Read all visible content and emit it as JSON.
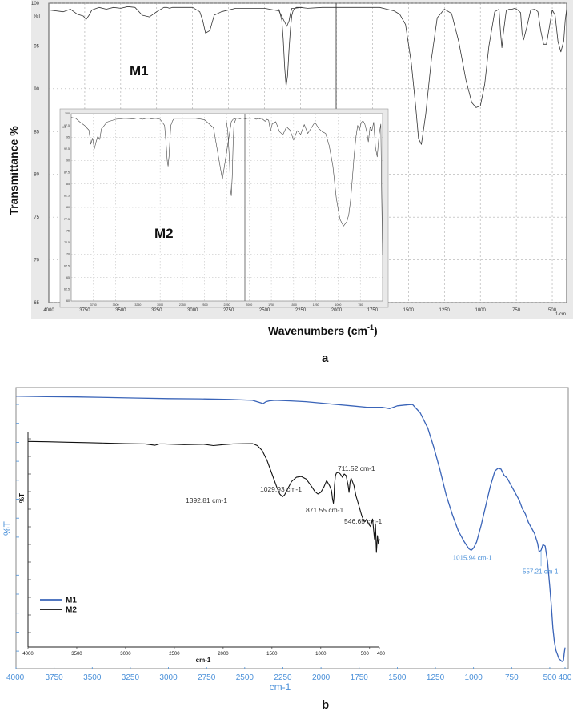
{
  "panel_a": {
    "letter": "a",
    "ylabel": "Transmittance %",
    "xlabel": "Wavenumbers (cm",
    "xlabel_sup": "-1",
    "xlabel_end": ")",
    "unit_small": "%T",
    "unit_xaxis": "1/cm"
  },
  "panel_b": {
    "letter": "b",
    "ylabel": "%T",
    "xlabel": "cm-1",
    "inset_ylabel": "%T",
    "inset_xlabel": "cm-1"
  },
  "chart_data": [
    {
      "id": "a_main",
      "type": "line",
      "xlim": [
        4000,
        400
      ],
      "ylim": [
        65,
        100
      ],
      "x_ticks": [
        4000,
        3750,
        3500,
        3250,
        3000,
        2750,
        2500,
        2250,
        2000,
        1750,
        1500,
        1250,
        1000,
        750,
        500
      ],
      "x_tick_labels": [
        "4000",
        "3750",
        "3500",
        "3250",
        "3000",
        "2750",
        "2500",
        "2250",
        "2000",
        "1750",
        "1500",
        "1250",
        "1000",
        "750",
        "500"
      ],
      "y_ticks": [
        65,
        70,
        75,
        80,
        85,
        90,
        95,
        100
      ],
      "y_tick_labels": [
        "65",
        "70",
        "75",
        "80",
        "85",
        "90",
        "95",
        "100"
      ],
      "grid": true,
      "annotation": "M1",
      "series": [
        {
          "color": "#333333",
          "x": [
            4000,
            3900,
            3850,
            3800,
            3760,
            3740,
            3720,
            3700,
            3650,
            3600,
            3550,
            3500,
            3450,
            3400,
            3350,
            3300,
            3250,
            3200,
            3180,
            3160,
            3140,
            3120,
            3100,
            3000,
            2950,
            2930,
            2910,
            2880,
            2850,
            2800,
            2700,
            2500,
            2400,
            2360,
            2345,
            2330,
            2320,
            2310,
            2290,
            2250,
            2200,
            2100,
            2000,
            1900,
            1800,
            1700,
            1650,
            1600,
            1560,
            1520,
            1480,
            1450,
            1430,
            1410,
            1380,
            1340,
            1300,
            1250,
            1200,
            1150,
            1100,
            1060,
            1030,
            1000,
            970,
            940,
            900,
            870,
            860,
            850,
            840,
            820,
            800,
            780,
            760,
            740,
            720,
            710,
            700,
            680,
            650,
            620,
            600,
            580,
            560,
            540,
            520,
            500,
            480,
            460,
            440,
            420,
            410,
            400
          ],
          "y": [
            99.2,
            99.0,
            99.3,
            98.7,
            98.5,
            98.1,
            98.6,
            99.2,
            99.5,
            99.3,
            99.5,
            99.4,
            99.6,
            99.5,
            98.6,
            98.4,
            99.0,
            99.5,
            99.5,
            99.4,
            99.5,
            99.5,
            99.5,
            99.5,
            99.0,
            98.0,
            96.5,
            96.8,
            98.6,
            99.0,
            99.4,
            99.4,
            99.1,
            97.8,
            97.3,
            97.9,
            98.8,
            99.4,
            99.4,
            99.5,
            99.4,
            99.5,
            99.5,
            99.5,
            99.5,
            99.5,
            99.3,
            99.1,
            98.7,
            97.5,
            93.0,
            88.0,
            84.2,
            83.5,
            87.0,
            93.5,
            98.3,
            99.3,
            98.8,
            95.5,
            91.0,
            88.4,
            87.8,
            88.0,
            90.5,
            95.0,
            99.0,
            99.3,
            96.7,
            94.8,
            96.5,
            99.1,
            99.3,
            99.3,
            99.4,
            99.2,
            98.9,
            96.5,
            95.7,
            97.0,
            99.2,
            99.3,
            99.0,
            96.8,
            95.2,
            95.2,
            97.2,
            99.2,
            98.6,
            95.5,
            94.3,
            95.6,
            98.0,
            99.3
          ]
        },
        {
          "color": "#333333",
          "x": [
            2400,
            2380,
            2370,
            2360,
            2350,
            2340,
            2330,
            2320,
            2310,
            2300,
            2280,
            2260,
            2240
          ],
          "y": [
            99.3,
            98.0,
            95.8,
            92.5,
            90.3,
            91.5,
            94.5,
            97.0,
            98.6,
            99.2,
            99.5,
            99.5,
            99.5
          ]
        }
      ]
    },
    {
      "id": "a_inset",
      "type": "line",
      "xlim": [
        4000,
        500
      ],
      "ylim": [
        60,
        100
      ],
      "x_ticks": [
        3750,
        3500,
        3250,
        3000,
        2750,
        2500,
        2250,
        2000,
        1750,
        1500,
        1250,
        1000,
        750
      ],
      "x_tick_labels": [
        "3750",
        "3500",
        "3250",
        "3000",
        "2750",
        "2500",
        "2250",
        "2000",
        "1750",
        "1500",
        "1250",
        "1000",
        "750"
      ],
      "y_ticks": [
        60,
        62.5,
        65,
        67.5,
        70,
        72.5,
        75,
        77.5,
        80,
        82.5,
        85,
        87.5,
        90,
        92.5,
        95,
        97.5,
        100
      ],
      "y_tick_labels": [
        "60",
        "62.5",
        "65",
        "67.5",
        "70",
        "72.5",
        "75",
        "77.5",
        "80",
        "82.5",
        "85",
        "87.5",
        "90",
        "92.5",
        "95",
        "97.5",
        "100"
      ],
      "grid": true,
      "annotation": "M2",
      "series": [
        {
          "color": "#444444",
          "x": [
            4000,
            3950,
            3900,
            3850,
            3800,
            3780,
            3760,
            3740,
            3720,
            3700,
            3680,
            3660,
            3640,
            3600,
            3500,
            3400,
            3300,
            3250,
            3200,
            3180,
            3160,
            3140,
            3120,
            3100,
            3050,
            3000,
            2950,
            2930,
            2920,
            2910,
            2900,
            2890,
            2880,
            2860,
            2840,
            2820,
            2800,
            2700,
            2600,
            2500,
            2400,
            2300,
            2200,
            2180,
            2160,
            2140,
            2120,
            2100,
            2080,
            2060,
            2040,
            2020,
            2000,
            1980,
            1960,
            1940,
            1920,
            1900,
            1880,
            1860,
            1840,
            1820,
            1800,
            1780,
            1760,
            1740,
            1700,
            1660,
            1620,
            1580,
            1540,
            1500,
            1460,
            1420,
            1380,
            1340,
            1300,
            1260,
            1220,
            1180,
            1140,
            1100,
            1060,
            1020,
            980,
            940,
            900,
            880,
            860,
            840,
            820,
            800,
            780,
            760,
            740,
            720,
            700,
            680,
            660,
            640,
            620,
            600,
            580,
            560,
            540,
            520,
            510,
            500
          ],
          "y": [
            99.2,
            99.0,
            98.2,
            97.5,
            96.5,
            93.5,
            94.8,
            92.5,
            94.0,
            95.2,
            94.5,
            96.8,
            97.2,
            98.2,
            98.8,
            99.0,
            98.9,
            99.1,
            98.8,
            98.9,
            99.0,
            99.0,
            99.0,
            98.9,
            99.0,
            98.8,
            97.5,
            93.0,
            90.0,
            88.8,
            91.0,
            94.5,
            97.5,
            98.5,
            99.0,
            99.0,
            99.0,
            99.0,
            99.0,
            98.7,
            97.0,
            86.0,
            98.3,
            98.8,
            98.9,
            99.0,
            99.0,
            98.9,
            99.1,
            99.0,
            98.9,
            99.0,
            99.0,
            99.0,
            99.1,
            99.0,
            98.8,
            99.0,
            98.9,
            99.0,
            98.7,
            98.4,
            98.8,
            98.6,
            96.3,
            97.8,
            98.3,
            96.2,
            95.5,
            97.2,
            96.5,
            94.4,
            96.4,
            95.6,
            97.7,
            95.8,
            97.0,
            98.2,
            96.9,
            96.2,
            95.8,
            93.2,
            89.0,
            82.0,
            77.5,
            76.0,
            77.0,
            78.5,
            81.5,
            86.0,
            91.0,
            95.0,
            97.5,
            96.5,
            98.1,
            98.5,
            97.8,
            96.3,
            94.0,
            97.2,
            96.4,
            98.2,
            92.8,
            90.8,
            95.5,
            97.8,
            82.0,
            70.0
          ]
        },
        {
          "color": "#444444",
          "x": [
            2260,
            2240,
            2220,
            2210,
            2200,
            2190,
            2180,
            2170,
            2150
          ],
          "y": [
            98.8,
            96.5,
            90.0,
            84.0,
            82.5,
            86.5,
            93.5,
            97.8,
            98.8
          ]
        }
      ]
    },
    {
      "id": "b_main",
      "type": "line",
      "xlim": [
        4000,
        400
      ],
      "ylim": [
        0,
        100
      ],
      "x_ticks": [
        4000,
        3750,
        3500,
        3250,
        3000,
        2750,
        2500,
        2250,
        2000,
        1750,
        1500,
        1250,
        1000,
        750,
        500,
        400
      ],
      "x_tick_labels": [
        "4000",
        "3750",
        "3500",
        "3250",
        "3000",
        "2750",
        "2500",
        "2250",
        "2000",
        "1750",
        "1500",
        "1250",
        "1000",
        "750",
        "500",
        "400"
      ],
      "grid": false,
      "legend": [
        {
          "name": "M1",
          "color": "#3a64b8"
        },
        {
          "name": "M2",
          "color": "#111111"
        }
      ],
      "annotations": [
        {
          "text": "1015.94 cm-1",
          "x": 1015.94,
          "color": "#4a90d9"
        },
        {
          "text": "557.21 cm-1",
          "x": 557.21,
          "color": "#4a90d9"
        }
      ],
      "series": [
        {
          "name": "M1",
          "color": "#3a64b8",
          "x": [
            4000,
            3800,
            3600,
            3400,
            3200,
            3000,
            2800,
            2600,
            2450,
            2400,
            2380,
            2360,
            2340,
            2300,
            2200,
            2100,
            2000,
            1900,
            1800,
            1700,
            1600,
            1550,
            1500,
            1450,
            1400,
            1350,
            1300,
            1260,
            1220,
            1180,
            1140,
            1100,
            1060,
            1030,
            1015,
            1000,
            980,
            950,
            920,
            890,
            860,
            840,
            820,
            800,
            780,
            760,
            740,
            720,
            700,
            680,
            660,
            640,
            620,
            600,
            580,
            570,
            557,
            545,
            530,
            515,
            500,
            490,
            480,
            470,
            460,
            450,
            440,
            430,
            420,
            410,
            405,
            400
          ],
          "y": [
            97.5,
            97.3,
            97.2,
            97.0,
            96.8,
            96.6,
            96.5,
            96.3,
            96.0,
            95.2,
            94.8,
            95.5,
            95.8,
            96.0,
            95.8,
            95.5,
            95.0,
            94.5,
            94.0,
            93.5,
            93.5,
            93.0,
            94.0,
            94.3,
            94.5,
            91.5,
            86.0,
            79.0,
            71.0,
            62.0,
            55.0,
            49.0,
            45.0,
            42.5,
            42.0,
            42.8,
            45.0,
            51.0,
            58.0,
            65.0,
            70.5,
            71.5,
            71.2,
            69.0,
            68.0,
            66.0,
            64.0,
            62.0,
            60.0,
            57.0,
            55.0,
            52.0,
            50.0,
            48.0,
            44.5,
            41.5,
            42.0,
            44.0,
            43.5,
            38.0,
            29.0,
            22.0,
            14.0,
            9.0,
            6.0,
            4.5,
            3.0,
            2.5,
            2.0,
            2.5,
            5.0,
            7.0
          ]
        }
      ]
    },
    {
      "id": "b_inset",
      "type": "line",
      "xlim": [
        4000,
        400
      ],
      "ylim": [
        0,
        100
      ],
      "x_ticks": [
        4000,
        3500,
        3000,
        2500,
        2000,
        1500,
        1000,
        500,
        400
      ],
      "x_tick_labels": [
        "4000",
        "3500",
        "3000",
        "2500",
        "2000",
        "1500",
        "1000",
        "500",
        "400"
      ],
      "grid": false,
      "annotations": [
        {
          "text": "1392.81  cm-1",
          "x": 1392.81,
          "color": "#333333"
        },
        {
          "text": "1029.93  cm-1",
          "x": 1029.93,
          "color": "#333333"
        },
        {
          "text": "871.55  cm-1",
          "x": 871.55,
          "color": "#333333"
        },
        {
          "text": "711.52 cm-1",
          "x": 711.52,
          "color": "#333333"
        },
        {
          "text": "546.65  cm-1",
          "x": 546.65,
          "color": "#333333"
        }
      ],
      "series": [
        {
          "name": "M2",
          "color": "#111111",
          "x": [
            4000,
            3800,
            3600,
            3400,
            3200,
            3000,
            2800,
            2700,
            2650,
            2600,
            2400,
            2200,
            2100,
            2000,
            1900,
            1800,
            1700,
            1650,
            1600,
            1550,
            1500,
            1450,
            1420,
            1392,
            1370,
            1340,
            1300,
            1250,
            1200,
            1150,
            1100,
            1060,
            1030,
            1000,
            970,
            940,
            910,
            890,
            880,
            871,
            865,
            860,
            850,
            840,
            820,
            800,
            780,
            760,
            740,
            720,
            711,
            700,
            690,
            680,
            660,
            640,
            620,
            600,
            580,
            560,
            546,
            530,
            510,
            490,
            470,
            450,
            440,
            430,
            420,
            410,
            400
          ],
          "y": [
            96.5,
            96.3,
            96.0,
            95.8,
            95.5,
            95.2,
            95.0,
            94.2,
            95.0,
            95.0,
            94.6,
            94.8,
            94.0,
            94.6,
            95.0,
            95.1,
            95.2,
            94.0,
            91.0,
            85.0,
            77.0,
            69.0,
            65.0,
            63.3,
            64.5,
            68.0,
            72.5,
            75.0,
            75.5,
            74.0,
            70.0,
            66.5,
            65.0,
            66.0,
            69.0,
            73.0,
            70.0,
            67.0,
            62.0,
            59.5,
            63.0,
            70.0,
            76.0,
            77.5,
            78.0,
            77.0,
            75.0,
            77.0,
            76.0,
            70.0,
            66.0,
            72.0,
            74.5,
            73.0,
            70.0,
            64.0,
            60.0,
            56.0,
            52.0,
            49.0,
            48.5,
            50.0,
            47.0,
            45.5,
            50.0,
            38.0,
            47.0,
            30.0,
            40.0,
            35.0,
            38.0
          ]
        }
      ]
    }
  ]
}
